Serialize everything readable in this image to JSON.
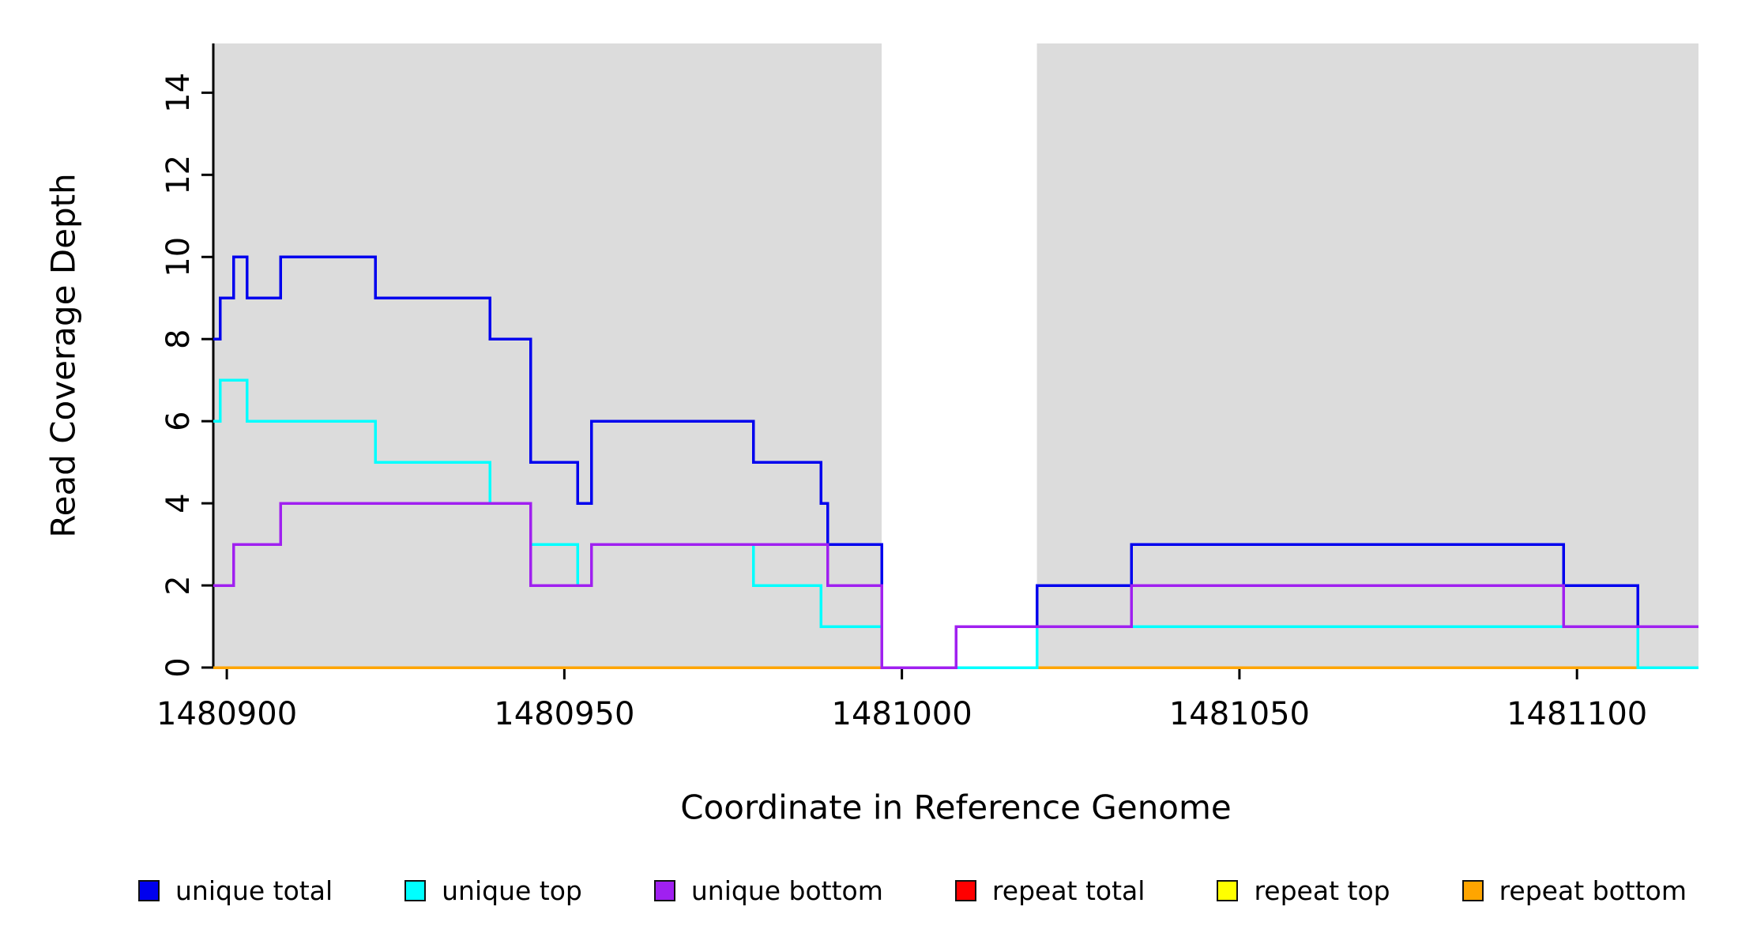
{
  "chart_data": {
    "type": "line",
    "subtype": "step",
    "title": "",
    "xlabel": "Coordinate in Reference Genome",
    "ylabel": "Read Coverage Depth",
    "xlim": [
      1480898,
      1481118
    ],
    "ylim": [
      0,
      15.2
    ],
    "x_ticks": [
      1480900,
      1480950,
      1481000,
      1481050,
      1481100
    ],
    "y_ticks": [
      0,
      2,
      4,
      6,
      8,
      10,
      12,
      14
    ],
    "grid": false,
    "shaded_regions": [
      {
        "x0": 1480898,
        "x1": 1480997,
        "color": "#dcdcdc"
      },
      {
        "x0": 1481020,
        "x1": 1481118,
        "color": "#dcdcdc"
      }
    ],
    "draw_order": [
      "repeat total",
      "repeat top",
      "repeat bottom",
      "unique total",
      "unique top",
      "unique bottom"
    ],
    "series": [
      {
        "name": "unique total",
        "color": "#0000ee",
        "steps": [
          [
            1480898,
            8
          ],
          [
            1480899,
            9
          ],
          [
            1480901,
            10
          ],
          [
            1480903,
            9
          ],
          [
            1480908,
            10
          ],
          [
            1480922,
            9
          ],
          [
            1480939,
            8
          ],
          [
            1480945,
            5
          ],
          [
            1480952,
            4
          ],
          [
            1480954,
            6
          ],
          [
            1480978,
            5
          ],
          [
            1480988,
            4
          ],
          [
            1480989,
            3
          ],
          [
            1480997,
            0
          ],
          [
            1481008,
            1
          ],
          [
            1481020,
            2
          ],
          [
            1481034,
            3
          ],
          [
            1481098,
            2
          ],
          [
            1481109,
            1
          ]
        ]
      },
      {
        "name": "unique top",
        "color": "#00ffff",
        "steps": [
          [
            1480898,
            6
          ],
          [
            1480899,
            7
          ],
          [
            1480903,
            6
          ],
          [
            1480922,
            5
          ],
          [
            1480939,
            4
          ],
          [
            1480945,
            3
          ],
          [
            1480952,
            2
          ],
          [
            1480954,
            3
          ],
          [
            1480978,
            2
          ],
          [
            1480988,
            1
          ],
          [
            1480997,
            0
          ],
          [
            1481020,
            1
          ],
          [
            1481109,
            0
          ]
        ]
      },
      {
        "name": "unique bottom",
        "color": "#a020f0",
        "steps": [
          [
            1480898,
            2
          ],
          [
            1480901,
            3
          ],
          [
            1480908,
            4
          ],
          [
            1480945,
            2
          ],
          [
            1480954,
            3
          ],
          [
            1480989,
            2
          ],
          [
            1480997,
            0
          ],
          [
            1481008,
            1
          ],
          [
            1481034,
            2
          ],
          [
            1481098,
            1
          ]
        ]
      },
      {
        "name": "repeat total",
        "color": "#ff0000",
        "steps": [
          [
            1480898,
            0
          ]
        ]
      },
      {
        "name": "repeat top",
        "color": "#ffff00",
        "steps": [
          [
            1480898,
            0
          ]
        ]
      },
      {
        "name": "repeat bottom",
        "color": "#ffa500",
        "steps": [
          [
            1480898,
            0
          ]
        ]
      }
    ],
    "legend": {
      "position": "bottom",
      "entries": [
        "unique total",
        "unique top",
        "unique bottom",
        "repeat total",
        "repeat top",
        "repeat bottom"
      ]
    }
  }
}
